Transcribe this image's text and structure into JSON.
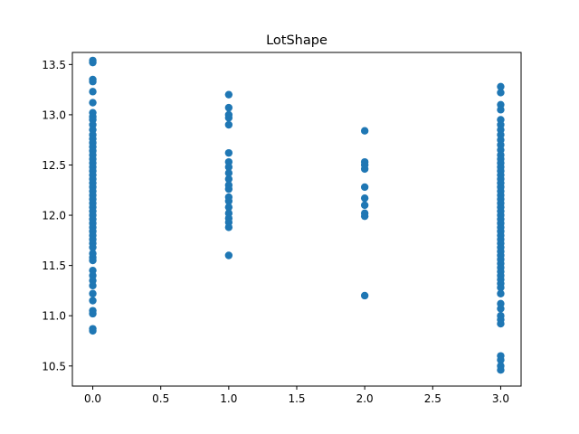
{
  "chart_data": {
    "type": "scatter",
    "title": "LotShape",
    "xlabel": "",
    "ylabel": "",
    "xlim": [
      -0.15,
      3.15
    ],
    "ylim": [
      10.3,
      13.62
    ],
    "grid": false,
    "marker_color": "#1f77b4",
    "x_ticks": [
      {
        "value": 0.0,
        "label": "0.0"
      },
      {
        "value": 0.5,
        "label": "0.5"
      },
      {
        "value": 1.0,
        "label": "1.0"
      },
      {
        "value": 1.5,
        "label": "1.5"
      },
      {
        "value": 2.0,
        "label": "2.0"
      },
      {
        "value": 2.5,
        "label": "2.5"
      },
      {
        "value": 3.0,
        "label": "3.0"
      }
    ],
    "y_ticks": [
      {
        "value": 10.5,
        "label": "10.5"
      },
      {
        "value": 11.0,
        "label": "11.0"
      },
      {
        "value": 11.5,
        "label": "11.5"
      },
      {
        "value": 12.0,
        "label": "12.0"
      },
      {
        "value": 12.5,
        "label": "12.5"
      },
      {
        "value": 13.0,
        "label": "13.0"
      },
      {
        "value": 13.5,
        "label": "13.5"
      }
    ],
    "series": [
      {
        "x": 0,
        "y": [
          13.54,
          13.52,
          13.35,
          13.33,
          13.23,
          13.12,
          13.02,
          12.98,
          12.95,
          12.9,
          12.85,
          12.8,
          12.76,
          12.72,
          12.68,
          12.64,
          12.6,
          12.56,
          12.52,
          12.48,
          12.44,
          12.4,
          12.36,
          12.32,
          12.28,
          12.24,
          12.2,
          12.16,
          12.12,
          12.08,
          12.04,
          12.0,
          11.96,
          11.92,
          11.88,
          11.84,
          11.8,
          11.76,
          11.72,
          11.68,
          11.62,
          11.58,
          11.55,
          11.45,
          11.4,
          11.35,
          11.3,
          11.22,
          11.15,
          11.05,
          11.02,
          10.87,
          10.85
        ]
      },
      {
        "x": 1,
        "y": [
          13.2,
          13.07,
          13.0,
          12.97,
          12.9,
          12.62,
          12.53,
          12.48,
          12.42,
          12.36,
          12.3,
          12.26,
          12.18,
          12.14,
          12.08,
          12.02,
          11.97,
          11.93,
          11.88,
          11.6
        ]
      },
      {
        "x": 2,
        "y": [
          12.84,
          12.53,
          12.5,
          12.46,
          12.28,
          12.17,
          12.1,
          12.02,
          11.99,
          11.2
        ]
      },
      {
        "x": 3,
        "y": [
          13.28,
          13.22,
          13.1,
          13.05,
          12.95,
          12.9,
          12.85,
          12.8,
          12.75,
          12.7,
          12.65,
          12.6,
          12.56,
          12.52,
          12.48,
          12.44,
          12.4,
          12.36,
          12.32,
          12.28,
          12.24,
          12.2,
          12.16,
          12.12,
          12.08,
          12.04,
          12.0,
          11.96,
          11.92,
          11.88,
          11.84,
          11.8,
          11.76,
          11.72,
          11.68,
          11.64,
          11.6,
          11.56,
          11.52,
          11.48,
          11.44,
          11.4,
          11.36,
          11.32,
          11.28,
          11.22,
          11.12,
          11.07,
          11.0,
          10.96,
          10.92,
          10.6,
          10.56,
          10.5,
          10.46
        ]
      }
    ]
  }
}
